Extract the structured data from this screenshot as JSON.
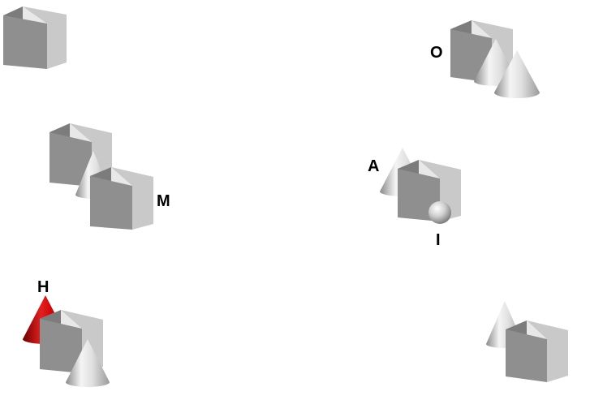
{
  "scene": {
    "background": "#ffffff",
    "object_color": "#c8c8c8",
    "highlight_color": "#cc0000",
    "labels": {
      "O": "O",
      "A": "A",
      "M": "M",
      "I": "I",
      "H": "H"
    },
    "objects": [
      {
        "id": "cube-1",
        "shape": "cube"
      },
      {
        "id": "cube-2",
        "shape": "cube",
        "label": "O"
      },
      {
        "id": "cone-1",
        "shape": "cone",
        "label": "O"
      },
      {
        "id": "cone-2",
        "shape": "cone",
        "label": "O"
      },
      {
        "id": "cube-3",
        "shape": "cube"
      },
      {
        "id": "cone-3",
        "shape": "cone"
      },
      {
        "id": "cube-4",
        "shape": "cube",
        "label": "M"
      },
      {
        "id": "cone-4",
        "shape": "cone",
        "label": "A"
      },
      {
        "id": "cube-5",
        "shape": "cube",
        "label": "A"
      },
      {
        "id": "sphere-1",
        "shape": "sphere",
        "label": "I"
      },
      {
        "id": "cone-5",
        "shape": "cone",
        "label": "H",
        "highlighted": true
      },
      {
        "id": "cube-6",
        "shape": "cube",
        "label": "H"
      },
      {
        "id": "cone-6",
        "shape": "cone"
      },
      {
        "id": "cone-7",
        "shape": "cone"
      },
      {
        "id": "cube-7",
        "shape": "cube"
      }
    ]
  }
}
